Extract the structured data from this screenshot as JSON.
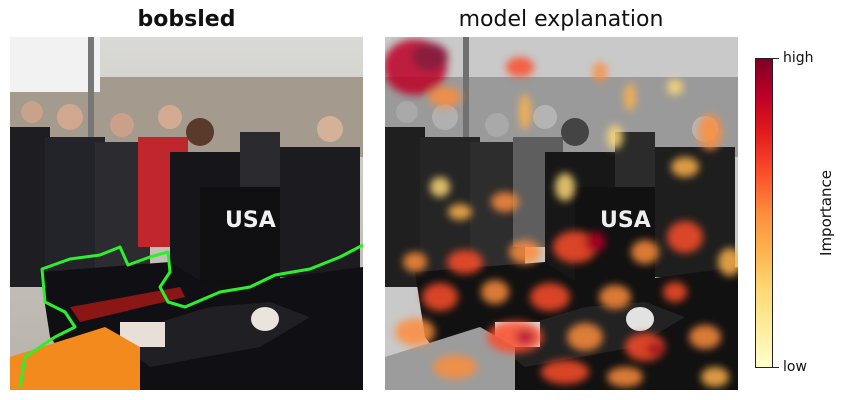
{
  "left_panel": {
    "title": "bobsled",
    "image_text": "USA"
  },
  "right_panel": {
    "title": "model explanation",
    "image_text": "USA"
  },
  "colorbar": {
    "title": "Importance",
    "high_label": "high",
    "low_label": "low",
    "colormap": "YlOrRd"
  },
  "colors": {
    "mask_outline": "#2cf02c",
    "heat_dark": "#800026",
    "heat_light": "#ffffcc"
  }
}
